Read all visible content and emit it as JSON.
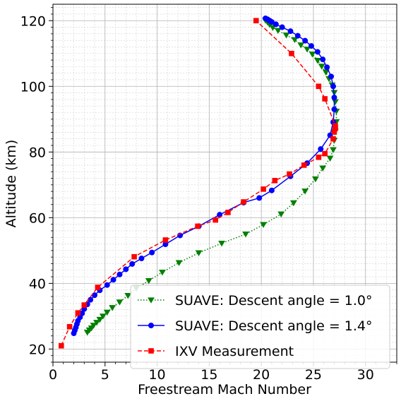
{
  "chart_data": {
    "type": "line",
    "title": "",
    "xlabel": "Freestream Mach Number",
    "ylabel": "Altitude (km)",
    "xlim": [
      0,
      33
    ],
    "ylim": [
      16,
      125
    ],
    "xticks": [
      0,
      5,
      10,
      15,
      20,
      25,
      30
    ],
    "yticks": [
      20,
      40,
      60,
      80,
      100,
      120
    ],
    "grid": true,
    "minor_grid": true,
    "legend_position": "lower right",
    "series": [
      {
        "name": "SUAVE: Descent angle = 1.0°",
        "color": "#008000",
        "line_style": "dotted",
        "marker": "triangle-down",
        "x": [
          3.3,
          3.5,
          3.7,
          3.9,
          4.2,
          4.5,
          4.8,
          5.2,
          5.7,
          6.4,
          7.2,
          8.0,
          9.2,
          10.5,
          12.1,
          14.0,
          16.2,
          18.5,
          20.2,
          21.9,
          23.1,
          24.2,
          25.2,
          25.9,
          26.6,
          26.9,
          27.0,
          27.1,
          27.2,
          27.2,
          27.1,
          27.0,
          26.8,
          26.5,
          26.2,
          25.8,
          25.4,
          24.9,
          24.4,
          23.8,
          23.2,
          22.4,
          21.6,
          21.1,
          20.8,
          20.6,
          20.4
        ],
        "y": [
          25.1,
          25.8,
          26.4,
          27.2,
          28.1,
          29.0,
          30.0,
          31.2,
          32.6,
          34.3,
          36.3,
          38.5,
          40.8,
          43.4,
          46.3,
          49.3,
          52.2,
          55.0,
          57.9,
          61.1,
          64.5,
          68.1,
          71.8,
          75.1,
          78.1,
          80.7,
          83.6,
          86.3,
          89.2,
          92.4,
          95.3,
          98.1,
          100.4,
          102.3,
          104.3,
          106.1,
          107.9,
          109.8,
          111.3,
          112.6,
          114.2,
          115.6,
          117.0,
          117.9,
          118.8,
          119.5,
          120.1
        ]
      },
      {
        "name": "SUAVE: Descent angle = 1.4°",
        "color": "#0000ff",
        "line_style": "solid",
        "marker": "circle",
        "x": [
          2.0,
          2.1,
          2.2,
          2.3,
          2.4,
          2.6,
          2.8,
          3.0,
          3.3,
          3.6,
          4.0,
          4.5,
          5.2,
          5.8,
          6.4,
          7.0,
          7.6,
          8.5,
          9.5,
          10.8,
          12.2,
          14.0,
          16.0,
          18.3,
          19.8,
          21.0,
          22.8,
          24.4,
          25.7,
          26.6,
          26.9,
          27.0,
          27.0,
          26.9,
          26.7,
          26.3,
          25.9,
          25.4,
          24.8,
          24.2,
          23.5,
          22.8,
          22.0,
          21.4,
          21.0,
          20.8,
          20.6,
          20.4
        ],
        "y": [
          24.8,
          25.7,
          26.6,
          27.6,
          28.6,
          29.7,
          30.9,
          32.2,
          33.6,
          35.0,
          36.4,
          37.9,
          39.5,
          41.1,
          42.7,
          44.3,
          45.9,
          47.6,
          49.4,
          51.9,
          54.6,
          57.4,
          60.9,
          64.6,
          66.0,
          68.3,
          72.6,
          76.6,
          80.9,
          85.1,
          89.1,
          93.0,
          96.6,
          100.0,
          103.0,
          105.8,
          108.2,
          110.5,
          112.3,
          113.9,
          115.4,
          116.8,
          118.0,
          118.9,
          119.6,
          120.0,
          120.4,
          120.7
        ]
      },
      {
        "name": "IXV Measurement",
        "color": "#ff0000",
        "line_style": "dashed",
        "marker": "square",
        "x": [
          0.8,
          1.6,
          2.4,
          3.0,
          4.3,
          7.8,
          10.8,
          13.9,
          15.6,
          16.8,
          18.3,
          20.2,
          21.3,
          22.7,
          24.1,
          25.5,
          26.1,
          26.9,
          27.0,
          27.1,
          27.1,
          26.1,
          25.5,
          22.9,
          19.5
        ],
        "y": [
          21.0,
          26.8,
          31.0,
          33.4,
          38.8,
          48.1,
          53.2,
          57.4,
          59.3,
          61.6,
          64.8,
          68.7,
          71.3,
          73.3,
          76.0,
          78.4,
          79.5,
          84.0,
          86.1,
          87.2,
          88.0,
          96.2,
          100.0,
          110.0,
          120.0
        ]
      }
    ]
  }
}
